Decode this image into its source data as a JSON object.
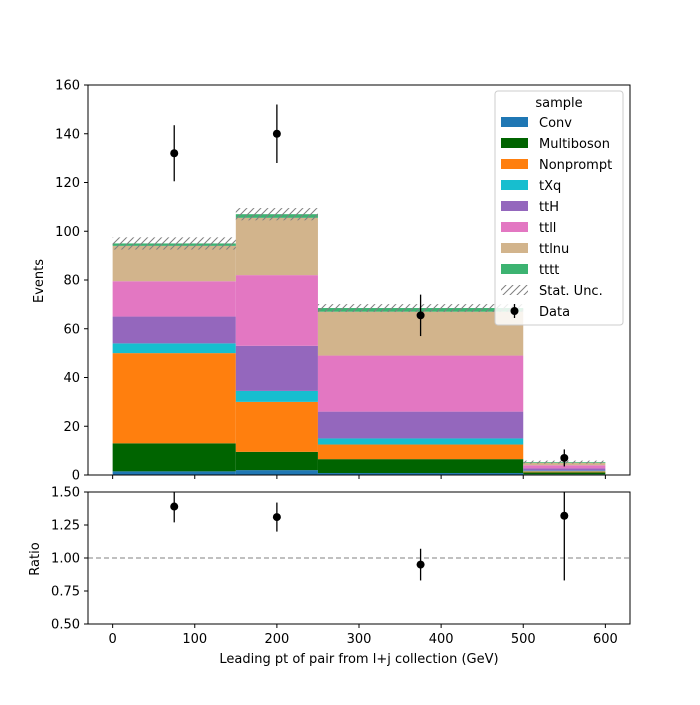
{
  "chart_data": {
    "type": "bar",
    "subtype": "stacked-histogram-with-ratio",
    "bin_edges": [
      0,
      150,
      250,
      500,
      600
    ],
    "xlabel": "Leading pt of pair from l+j collection (GeV)",
    "xlim": [
      -30,
      630
    ],
    "xticks": [
      0,
      100,
      200,
      300,
      400,
      500,
      600
    ],
    "main": {
      "ylabel": "Events",
      "ylim": [
        0,
        160
      ],
      "yticks": [
        0,
        20,
        40,
        60,
        80,
        100,
        120,
        140,
        160
      ],
      "series": [
        {
          "name": "Conv",
          "color": "#1f77b4",
          "values": [
            1.5,
            2.0,
            0.8,
            0.3
          ]
        },
        {
          "name": "Multiboson",
          "color": "#006400",
          "values": [
            11.5,
            7.5,
            5.7,
            0.8
          ]
        },
        {
          "name": "Nonprompt",
          "color": "#ff7f0e",
          "values": [
            37.0,
            20.5,
            6.0,
            0.4
          ]
        },
        {
          "name": "tXq",
          "color": "#17becf",
          "values": [
            4.0,
            4.5,
            2.5,
            0.3
          ]
        },
        {
          "name": "ttH",
          "color": "#9467bd",
          "values": [
            11.0,
            18.5,
            11.0,
            0.9
          ]
        },
        {
          "name": "ttll",
          "color": "#e377c2",
          "values": [
            14.5,
            29.0,
            23.0,
            1.3
          ]
        },
        {
          "name": "ttlnu",
          "color": "#d2b48c",
          "values": [
            14.5,
            23.5,
            18.0,
            1.0
          ]
        },
        {
          "name": "tttt",
          "color": "#3cb371",
          "values": [
            1.0,
            1.5,
            1.5,
            0.3
          ]
        }
      ],
      "stat_unc": [
        2.5,
        2.5,
        1.6,
        0.6
      ],
      "data": {
        "name": "Data",
        "x": [
          75,
          200,
          375,
          550
        ],
        "y": [
          132,
          140,
          65.5,
          7
        ],
        "yerr": [
          11.5,
          12,
          8.5,
          3.5
        ]
      },
      "legend": {
        "title": "sample",
        "placement": "top-right",
        "entries": [
          "Conv",
          "Multiboson",
          "Nonprompt",
          "tXq",
          "ttH",
          "ttll",
          "ttlnu",
          "tttt",
          "Stat. Unc.",
          "Data"
        ]
      }
    },
    "ratio": {
      "ylabel": "Ratio",
      "ylim": [
        0.5,
        1.5
      ],
      "yticks": [
        "0.50",
        "0.75",
        "1.00",
        "1.25",
        "1.50"
      ],
      "reference_line": 1.0,
      "x": [
        75,
        200,
        375,
        550
      ],
      "y": [
        1.39,
        1.31,
        0.95,
        1.32
      ],
      "yerr": [
        0.12,
        0.11,
        0.12,
        0.49
      ]
    }
  }
}
